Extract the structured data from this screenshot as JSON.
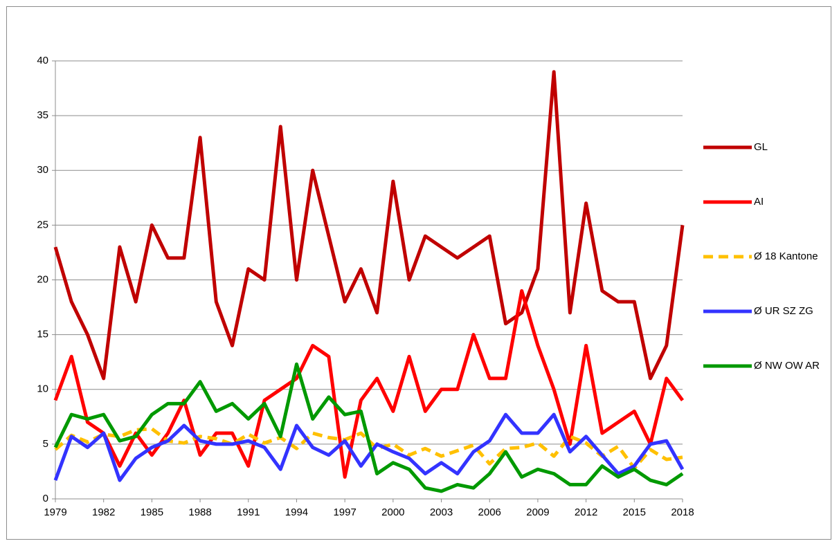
{
  "chart_data": {
    "type": "line",
    "x": [
      1979,
      1980,
      1981,
      1982,
      1983,
      1984,
      1985,
      1986,
      1987,
      1988,
      1989,
      1990,
      1991,
      1992,
      1993,
      1994,
      1995,
      1996,
      1997,
      1998,
      1999,
      2000,
      2001,
      2002,
      2003,
      2004,
      2005,
      2006,
      2007,
      2008,
      2009,
      2010,
      2011,
      2012,
      2013,
      2014,
      2015,
      2016,
      2017,
      2018
    ],
    "xlim": [
      1979,
      2018
    ],
    "xticks": [
      1979,
      1982,
      1985,
      1988,
      1991,
      1994,
      1997,
      2000,
      2003,
      2006,
      2009,
      2012,
      2015,
      2018
    ],
    "ylim": [
      0,
      40
    ],
    "yticks": [
      0,
      5,
      10,
      15,
      20,
      25,
      30,
      35,
      40
    ],
    "grid": true,
    "legend": "right",
    "series": [
      {
        "name": "GL",
        "color": "#c00000",
        "linestyle": "solid",
        "values": [
          23,
          18,
          15,
          11,
          23,
          18,
          25,
          22,
          22,
          33,
          18,
          14,
          21,
          20,
          34,
          20,
          30,
          24,
          18,
          21,
          17,
          29,
          20,
          24,
          23,
          22,
          23,
          24,
          16,
          17,
          21,
          39,
          17,
          27,
          19,
          18,
          18,
          11,
          14,
          25
        ]
      },
      {
        "name": "AI",
        "color": "#ff0000",
        "linestyle": "solid",
        "values": [
          9,
          13,
          7,
          6,
          3,
          6,
          4,
          6,
          9,
          4,
          6,
          6,
          3,
          9,
          10,
          11,
          14,
          13,
          2,
          9,
          11,
          8,
          13,
          8,
          10,
          10,
          15,
          11,
          11,
          19,
          14,
          10,
          5,
          14,
          6,
          7,
          8,
          5,
          11,
          9
        ]
      },
      {
        "name": "Ø 18 Kantone",
        "color": "#ffc000",
        "linestyle": "dashed",
        "values": [
          4.5,
          5.8,
          5.2,
          5.9,
          5.7,
          6.3,
          6.4,
          5.3,
          5.1,
          5.7,
          5.5,
          5.0,
          5.9,
          5.1,
          5.6,
          4.6,
          6.0,
          5.6,
          5.4,
          6.0,
          4.6,
          5.0,
          4.0,
          4.6,
          3.9,
          4.4,
          4.9,
          3.2,
          4.6,
          4.7,
          5.1,
          3.9,
          5.7,
          5.1,
          3.9,
          4.8,
          2.8,
          4.5,
          3.6,
          3.8
        ]
      },
      {
        "name": "Ø UR SZ ZG",
        "color": "#3333ff",
        "linestyle": "solid",
        "values": [
          1.7,
          5.7,
          4.7,
          6.0,
          1.7,
          3.7,
          4.7,
          5.3,
          6.7,
          5.3,
          5.0,
          5.0,
          5.3,
          4.7,
          2.7,
          6.7,
          4.7,
          4.0,
          5.3,
          3.0,
          5.0,
          4.3,
          3.7,
          2.3,
          3.3,
          2.3,
          4.3,
          5.3,
          7.7,
          6.0,
          6.0,
          7.7,
          4.3,
          5.7,
          4.0,
          2.3,
          3.0,
          5.0,
          5.3,
          2.7
        ]
      },
      {
        "name": "Ø NW OW AR",
        "color": "#009900",
        "linestyle": "solid",
        "values": [
          4.7,
          7.7,
          7.3,
          7.7,
          5.3,
          5.7,
          7.7,
          8.7,
          8.7,
          10.7,
          8.0,
          8.7,
          7.3,
          8.7,
          5.7,
          12.3,
          7.3,
          9.3,
          7.7,
          8.0,
          2.3,
          3.3,
          2.7,
          1.0,
          0.7,
          1.3,
          1.0,
          2.3,
          4.3,
          2.0,
          2.7,
          2.3,
          1.3,
          1.3,
          3.0,
          2.0,
          2.7,
          1.7,
          1.3,
          2.3
        ]
      }
    ]
  }
}
